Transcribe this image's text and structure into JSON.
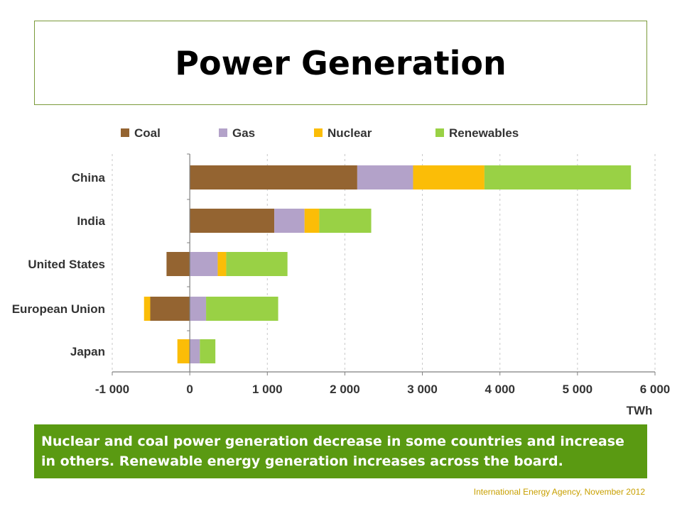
{
  "title": "Power Generation",
  "caption": "Nuclear and coal power generation decrease in some countries and increase in others. Renewable energy generation increases across the board.",
  "source": "International Energy Agency, November 2012",
  "chart_data": {
    "type": "bar",
    "orientation": "horizontal",
    "stacked": true,
    "categories": [
      "China",
      "India",
      "United States",
      "European Union",
      "Japan"
    ],
    "series": [
      {
        "name": "Coal",
        "color": "#946431",
        "values": [
          2160,
          1090,
          -300,
          -510,
          0
        ]
      },
      {
        "name": "Gas",
        "color": "#b3a2c9",
        "values": [
          720,
          390,
          360,
          210,
          130
        ]
      },
      {
        "name": "Nuclear",
        "color": "#fbbd07",
        "values": [
          920,
          190,
          110,
          -80,
          -160
        ]
      },
      {
        "name": "Renewables",
        "color": "#99d145",
        "values": [
          1890,
          670,
          790,
          930,
          200
        ]
      }
    ],
    "xlim": [
      -1000,
      6000
    ],
    "xticks": [
      -1000,
      0,
      1000,
      2000,
      3000,
      4000,
      5000,
      6000
    ],
    "xtick_labels": [
      "-1 000",
      "0",
      "1 000",
      "2 000",
      "3 000",
      "4 000",
      "5 000",
      "6 000"
    ],
    "xlabel": "TWh",
    "legend_position": "top",
    "grid": "vertical dashed"
  }
}
